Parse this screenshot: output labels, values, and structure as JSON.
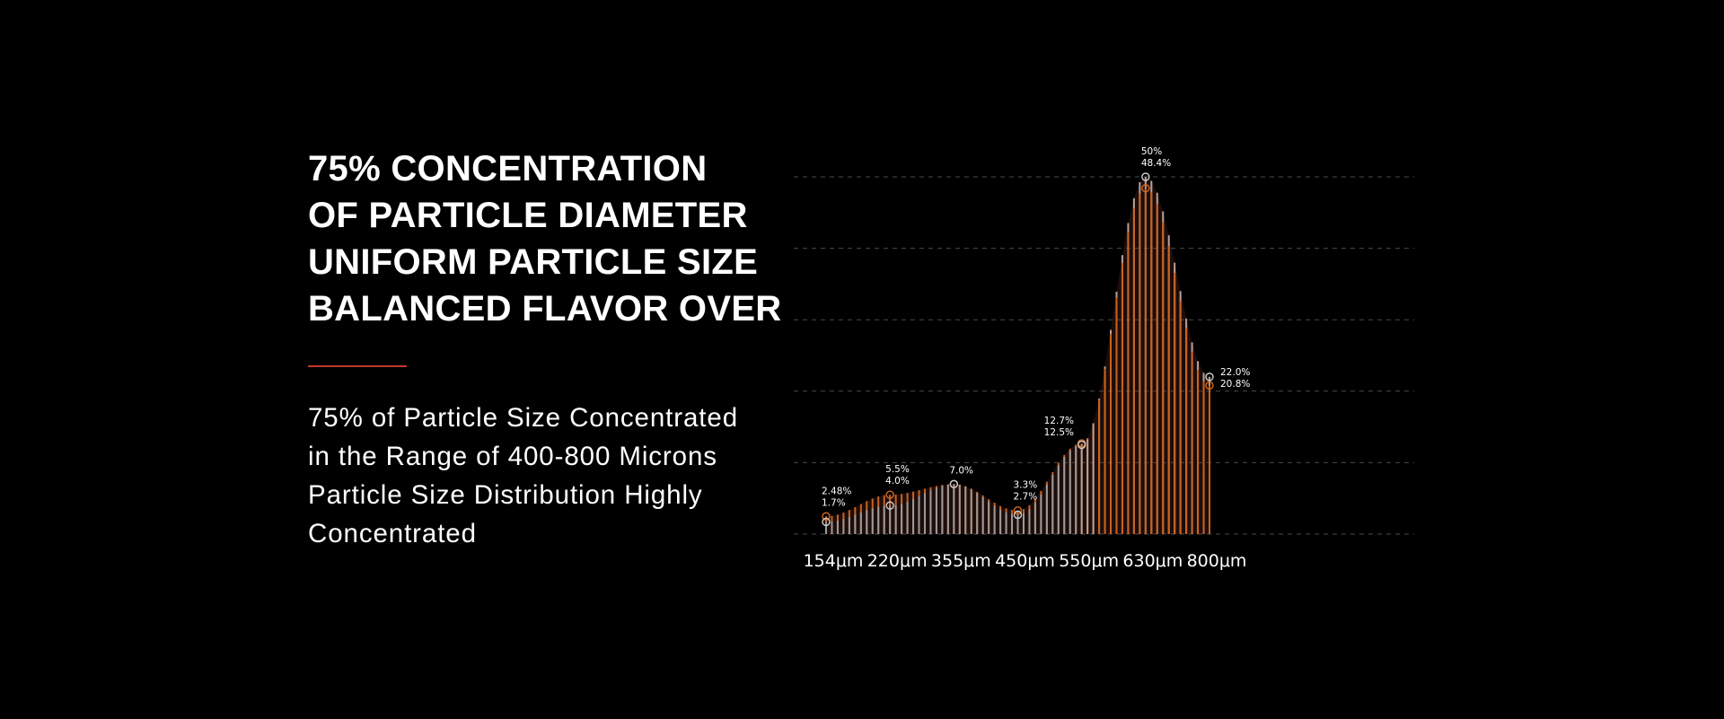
{
  "heading": {
    "lines": [
      "75% CONCENTRATION",
      "OF PARTICLE DIAMETER",
      "UNIFORM PARTICLE SIZE",
      "BALANCED FLAVOR OVER"
    ]
  },
  "divider_color": "#c0392b",
  "body": {
    "lines": [
      "75% of Particle Size Concentrated",
      "in the Range of 400-800 Microns",
      "Particle Size Distribution Highly",
      "Concentrated"
    ]
  },
  "chart_data": {
    "type": "bar",
    "title": "",
    "xlabel": "",
    "ylabel": "",
    "ylim": [
      0,
      50
    ],
    "grid": true,
    "grid_step": 10,
    "x_tick_labels": [
      "154μm",
      "220μm",
      "355μm",
      "450μm",
      "550μm",
      "630μm",
      "800μm"
    ],
    "bar_count": 67,
    "series": [
      {
        "color": "#c8621e",
        "keypoints": [
          2.48,
          5.5,
          7.0,
          3.3,
          12.7,
          48.4,
          20.8
        ]
      },
      {
        "color": "#9a9a9a",
        "keypoints": [
          1.7,
          4.0,
          7.0,
          2.7,
          12.5,
          50,
          22.0
        ]
      }
    ],
    "annotations": [
      {
        "lines": [
          "2.48%",
          "1.7%"
        ]
      },
      {
        "lines": [
          "5.5%",
          "4.0%"
        ]
      },
      {
        "lines": [
          "7.0%"
        ]
      },
      {
        "lines": [
          "3.3%",
          "2.7%"
        ]
      },
      {
        "lines": [
          "12.7%",
          "12.5%"
        ]
      },
      {
        "lines": [
          "50%",
          "48.4%"
        ]
      },
      {
        "lines": [
          "22.0%",
          "20.8%"
        ]
      }
    ],
    "area_color": "#1c0d0b"
  }
}
